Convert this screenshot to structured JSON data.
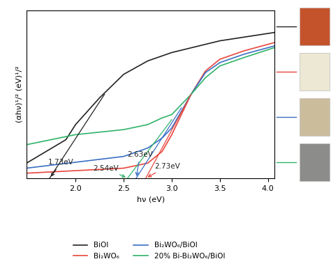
{
  "chart_data": {
    "type": "line",
    "x_label": "hν (eV)",
    "y_label": "(αhν)¹/² (eV)¹/²",
    "xlim": [
      1.49,
      4.07
    ],
    "xticks": [
      2.0,
      2.5,
      3.0,
      3.5,
      4.0
    ],
    "ylim": [
      0,
      1
    ],
    "yticks": [],
    "tick_labels": "x",
    "legend": "lower center",
    "series": [
      {
        "name": "BiOI",
        "color": "#222222",
        "x": [
          1.49,
          1.9,
          2.0,
          2.25,
          2.5,
          2.75,
          3.0,
          3.5,
          4.07
        ],
        "values": [
          0.09,
          0.23,
          0.32,
          0.48,
          0.62,
          0.7,
          0.75,
          0.82,
          0.87
        ]
      },
      {
        "name": "Bi₂WO₆",
        "color": "#e8453c",
        "x": [
          1.49,
          2.5,
          2.75,
          2.9,
          3.0,
          3.2,
          3.35,
          3.5,
          3.75,
          4.07
        ],
        "values": [
          0.03,
          0.06,
          0.09,
          0.16,
          0.26,
          0.5,
          0.64,
          0.71,
          0.76,
          0.81
        ]
      },
      {
        "name": "Bi₂WO₆/BiOI",
        "color": "#3a6fc4",
        "x": [
          1.49,
          2.5,
          2.75,
          2.9,
          3.0,
          3.2,
          3.35,
          3.5,
          3.75,
          4.07
        ],
        "values": [
          0.06,
          0.13,
          0.18,
          0.24,
          0.3,
          0.5,
          0.63,
          0.69,
          0.74,
          0.79
        ]
      },
      {
        "name": "20% Bi-Bi₂WO₆/BiOI",
        "color": "#2fb36a",
        "x": [
          1.49,
          2.0,
          2.5,
          2.75,
          2.9,
          3.0,
          3.2,
          3.35,
          3.5,
          3.75,
          4.07
        ],
        "values": [
          0.2,
          0.26,
          0.29,
          0.32,
          0.36,
          0.38,
          0.5,
          0.6,
          0.67,
          0.72,
          0.78
        ]
      }
    ],
    "annotations": [
      {
        "text": "1.73eV",
        "series": "BiOI",
        "x": 1.73,
        "tangent": [
          [
            1.73,
            0.0
          ],
          [
            2.3,
            0.5
          ]
        ]
      },
      {
        "text": "2.54eV",
        "series": "20% Bi-Bi₂WO₆/BiOI",
        "x": 2.54,
        "tangent": [
          [
            2.54,
            0.0
          ],
          [
            3.0,
            0.35
          ]
        ]
      },
      {
        "text": "2.63eV",
        "series": "Bi₂WO₆/BiOI",
        "x": 2.63,
        "tangent": [
          [
            2.63,
            0.0
          ],
          [
            3.1,
            0.42
          ]
        ]
      },
      {
        "text": "2.73eV",
        "series": "Bi₂WO₆",
        "x": 2.73,
        "tangent": [
          [
            2.73,
            0.0
          ],
          [
            3.2,
            0.5
          ]
        ]
      }
    ]
  }
}
